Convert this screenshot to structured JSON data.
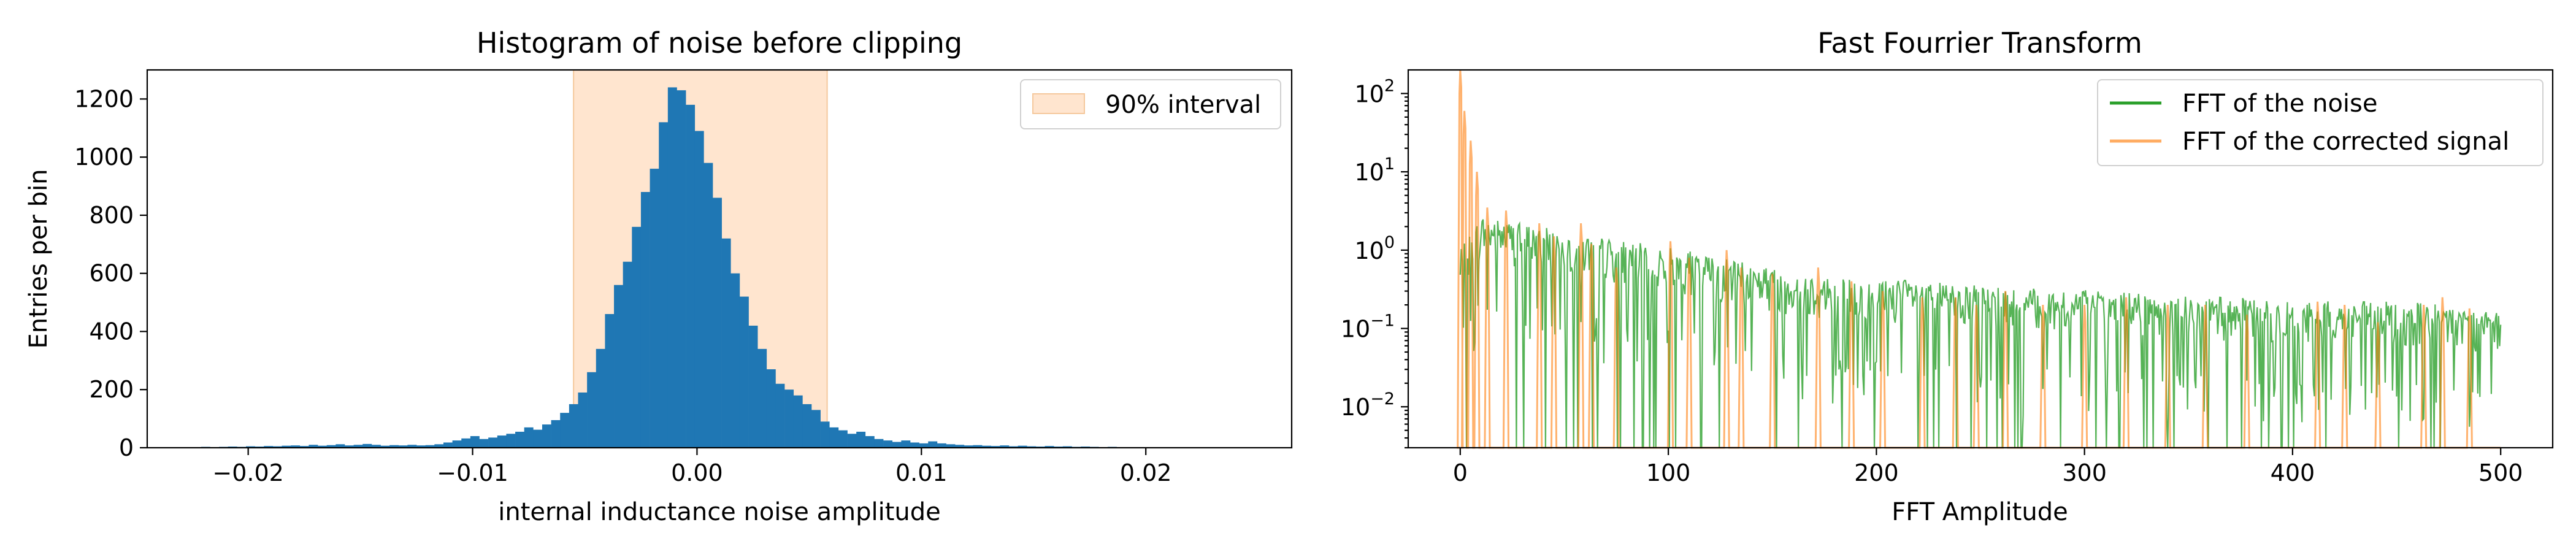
{
  "chart_data": [
    {
      "type": "bar",
      "title": "Histogram of noise before clipping",
      "xlabel": "internal inductance noise amplitude",
      "ylabel": "Entries per bin",
      "xlim": [
        -0.0245,
        0.0265
      ],
      "ylim": [
        0,
        1300
      ],
      "xticks": [
        -0.02,
        -0.01,
        0.0,
        0.01,
        0.02
      ],
      "xtick_labels": [
        "−0.02",
        "−0.01",
        "0.00",
        "0.01",
        "0.02"
      ],
      "yticks": [
        0,
        200,
        400,
        600,
        800,
        1000,
        1200
      ],
      "ytick_labels": [
        "0",
        "200",
        "400",
        "600",
        "800",
        "1000",
        "1200"
      ],
      "bin_start": -0.0225,
      "bin_width": 0.0004,
      "values": [
        2,
        3,
        2,
        3,
        4,
        3,
        5,
        4,
        6,
        5,
        7,
        8,
        6,
        10,
        7,
        9,
        12,
        8,
        10,
        13,
        10,
        7,
        9,
        8,
        10,
        8,
        9,
        12,
        18,
        25,
        32,
        40,
        30,
        35,
        42,
        48,
        55,
        70,
        62,
        80,
        95,
        120,
        150,
        190,
        260,
        340,
        460,
        560,
        640,
        760,
        880,
        960,
        1120,
        1240,
        1230,
        1180,
        1090,
        980,
        860,
        720,
        600,
        520,
        420,
        340,
        270,
        220,
        200,
        180,
        150,
        130,
        90,
        70,
        60,
        48,
        55,
        40,
        30,
        25,
        20,
        25,
        18,
        15,
        22,
        15,
        12,
        10,
        8,
        9,
        7,
        6,
        8,
        5,
        7,
        5,
        4,
        6,
        4,
        5,
        3,
        4,
        3,
        2,
        3,
        2,
        2,
        1,
        2,
        1,
        2,
        1,
        1,
        1,
        1,
        1,
        1,
        1,
        1
      ],
      "interval": [
        -0.0055,
        0.0058
      ],
      "grid": false,
      "legend": {
        "position": "top-right",
        "entries": [
          "90% interval"
        ]
      },
      "colors": {
        "bars": "#1f77b4",
        "interval": "#ffe5cf",
        "interval_edge": "#f5c89c"
      }
    },
    {
      "type": "line",
      "title": "Fast Fourrier Transform",
      "xlabel": "FFT Amplitude",
      "ylabel": "",
      "xlim": [
        -25,
        525
      ],
      "ylim": [
        0.003,
        200
      ],
      "yscale": "log",
      "xticks": [
        0,
        100,
        200,
        300,
        400,
        500
      ],
      "xtick_labels": [
        "0",
        "100",
        "200",
        "300",
        "400",
        "500"
      ],
      "yticks": [
        0.01,
        0.1,
        1,
        10,
        100
      ],
      "ytick_labels": [
        "10",
        "10",
        "10",
        "10",
        "10"
      ],
      "ytick_exponents": [
        "−2",
        "−1",
        "0",
        "1",
        "2"
      ],
      "grid": false,
      "legend": {
        "position": "top-right"
      },
      "series": [
        {
          "name": "FFT of the noise",
          "color": "#2ca02c",
          "envelope": [
            [
              0,
              0.9
            ],
            [
              10,
              2.5
            ],
            [
              20,
              2.2
            ],
            [
              40,
              1.8
            ],
            [
              60,
              1.4
            ],
            [
              80,
              1.2
            ],
            [
              100,
              1.0
            ],
            [
              140,
              0.6
            ],
            [
              180,
              0.4
            ],
            [
              220,
              0.38
            ],
            [
              260,
              0.3
            ],
            [
              300,
              0.28
            ],
            [
              340,
              0.25
            ],
            [
              380,
              0.22
            ],
            [
              420,
              0.2
            ],
            [
              460,
              0.2
            ],
            [
              500,
              0.15
            ]
          ],
          "floor": 0.003
        },
        {
          "name": "FFT of the corrected signal",
          "color": "#ff7f0e",
          "peaks": [
            [
              0,
              200
            ],
            [
              2,
              60
            ],
            [
              5,
              25
            ],
            [
              8,
              10
            ],
            [
              13,
              3.5
            ],
            [
              22,
              3.2
            ],
            [
              38,
              2.2
            ],
            [
              45,
              1.5
            ],
            [
              58,
              2.2
            ],
            [
              63,
              1.2
            ],
            [
              75,
              0.6
            ],
            [
              101,
              1.3
            ],
            [
              110,
              0.8
            ],
            [
              128,
              1.0
            ],
            [
              135,
              0.6
            ],
            [
              150,
              0.5
            ],
            [
              172,
              0.6
            ],
            [
              188,
              0.4
            ],
            [
              203,
              0.3
            ],
            [
              222,
              0.25
            ],
            [
              238,
              0.25
            ],
            [
              248,
              0.2
            ],
            [
              262,
              0.3
            ],
            [
              280,
              0.2
            ],
            [
              300,
              0.2
            ],
            [
              320,
              0.25
            ],
            [
              340,
              0.2
            ],
            [
              358,
              0.2
            ],
            [
              378,
              0.15
            ],
            [
              412,
              0.22
            ],
            [
              425,
              0.2
            ],
            [
              441,
              0.12
            ],
            [
              463,
              0.2
            ],
            [
              472,
              0.25
            ],
            [
              485,
              0.18
            ]
          ],
          "floor": 0.003
        }
      ]
    }
  ]
}
